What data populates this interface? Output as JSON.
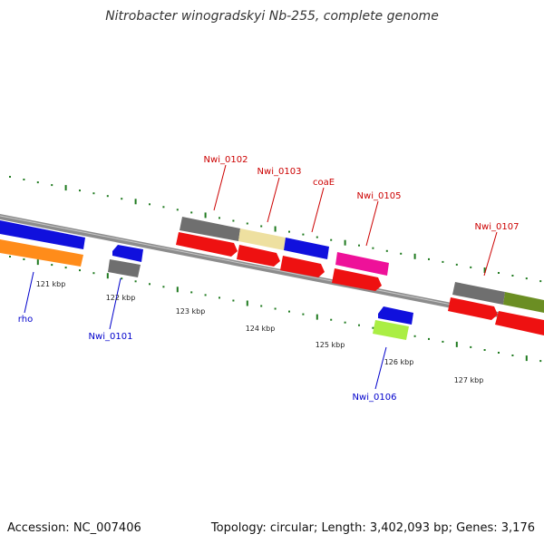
{
  "map": {
    "title": "Nitrobacter winogradskyi Nb-255, complete genome",
    "accession": "Accession: NC_007406",
    "summary": "Topology: circular; Length: 3,402,093 bp; Genes: 3,176"
  },
  "colors": {
    "backbone": "#8c8c8c",
    "tick": "#1f7a1f",
    "label_top": "#cc0000",
    "label_bottom": "#0000cc",
    "gray_gene": "#777777",
    "red_gene": "#ee1111",
    "blue_gene": "#1010dd",
    "orange_gene": "#ff8c1a",
    "khaki_gene": "#eee0a0",
    "pink_gene": "#ee1199",
    "lime_gene": "#aaee44",
    "olive_gene": "#6b8e23"
  },
  "axis": {
    "unit": "kbp",
    "ticks": [
      {
        "kbp": 121,
        "label": "121 kbp"
      },
      {
        "kbp": 122,
        "label": "122 kbp"
      },
      {
        "kbp": 123,
        "label": "123 kbp"
      },
      {
        "kbp": 124,
        "label": "124 kbp"
      },
      {
        "kbp": 125,
        "label": "125 kbp"
      },
      {
        "kbp": 126,
        "label": "126 kbp"
      },
      {
        "kbp": 127,
        "label": "127 kbp"
      }
    ]
  },
  "gene_labels": [
    {
      "text": "rho",
      "side": "bottom"
    },
    {
      "text": "Nwi_0101",
      "side": "bottom"
    },
    {
      "text": "Nwi_0102",
      "side": "top"
    },
    {
      "text": "Nwi_0103",
      "side": "top"
    },
    {
      "text": "coaE",
      "side": "top"
    },
    {
      "text": "Nwi_0105",
      "side": "top"
    },
    {
      "text": "Nwi_0106",
      "side": "bottom"
    },
    {
      "text": "Nwi_0107",
      "side": "top"
    }
  ]
}
